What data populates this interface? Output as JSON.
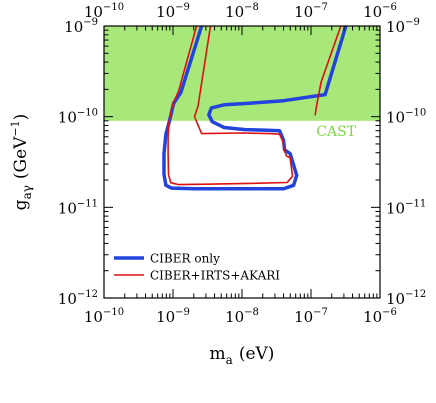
{
  "chart_data": {
    "type": "line",
    "x_scale": "log",
    "y_scale": "log",
    "xlim": [
      1e-10,
      1e-06
    ],
    "ylim": [
      1e-12,
      1e-09
    ],
    "x_ticks": [
      {
        "value": 1e-10,
        "base": "10",
        "exp": "−10"
      },
      {
        "value": 1e-09,
        "base": "10",
        "exp": "−9"
      },
      {
        "value": 1e-08,
        "base": "10",
        "exp": "−8"
      },
      {
        "value": 1e-07,
        "base": "10",
        "exp": "−7"
      },
      {
        "value": 1e-06,
        "base": "10",
        "exp": "−6"
      }
    ],
    "y_ticks": [
      {
        "value": 1e-12,
        "base": "10",
        "exp": "−12"
      },
      {
        "value": 1e-11,
        "base": "10",
        "exp": "−11"
      },
      {
        "value": 1e-10,
        "base": "10",
        "exp": "−10"
      },
      {
        "value": 1e-09,
        "base": "10",
        "exp": "−9"
      }
    ],
    "xlabel": {
      "main": "m",
      "sub": "a",
      "rest": "(eV)"
    },
    "ylabel": {
      "main": "g",
      "sub": "aγ",
      "rest": "(GeV",
      "sup": "−1",
      "close": ")"
    },
    "cast": {
      "label": "CAST",
      "lower_limit": 9e-11,
      "fill_color": "#a8e87a",
      "label_color": "#7fd645"
    },
    "series": [
      {
        "name": "CIBER only",
        "color": "#2244dd",
        "width": 3.5,
        "closed": false,
        "points": [
          [
            2.6e-09,
            1e-09
          ],
          [
            1.3e-09,
            1.85e-10
          ],
          [
            1.02e-09,
            1.4e-10
          ],
          [
            8.9e-10,
            9e-11
          ],
          [
            7.9e-10,
            6.4e-11
          ],
          [
            7.4e-10,
            3.9e-11
          ],
          [
            7.4e-10,
            2.3e-11
          ],
          [
            7.9e-10,
            1.75e-11
          ],
          [
            9.5e-10,
            1.63e-11
          ],
          [
            2e-09,
            1.6e-11
          ],
          [
            8e-09,
            1.6e-11
          ],
          [
            4e-08,
            1.6e-11
          ],
          [
            5.6e-08,
            1.75e-11
          ],
          [
            6.2e-08,
            2.25e-11
          ],
          [
            5e-08,
            3.9e-11
          ],
          [
            4.15e-08,
            4.3e-11
          ],
          [
            4e-08,
            5.5e-11
          ],
          [
            3.5e-08,
            7e-11
          ],
          [
            2.3e-08,
            7.1e-11
          ],
          [
            1.1e-08,
            7.2e-11
          ],
          [
            5.5e-09,
            7.6e-11
          ],
          [
            3.7e-09,
            8.8e-11
          ],
          [
            3.3e-09,
            1.05e-10
          ],
          [
            3.6e-09,
            1.25e-10
          ],
          [
            5.5e-09,
            1.35e-10
          ],
          [
            1.2e-08,
            1.4e-10
          ],
          [
            4e-08,
            1.5e-10
          ],
          [
            1.6e-07,
            1.75e-10
          ],
          [
            3.2e-07,
            1e-09
          ]
        ]
      },
      {
        "name": "CIBER+IRTS+AKARI",
        "color": "#dd1111",
        "width": 1.6,
        "closed": false,
        "points": [
          [
            2.2e-09,
            1e-09
          ],
          [
            1.2e-09,
            1.9e-10
          ],
          [
            9.8e-10,
            1.35e-10
          ],
          [
            8.8e-10,
            9e-11
          ],
          [
            8.5e-10,
            6e-11
          ],
          [
            8.5e-10,
            3.9e-11
          ],
          [
            8.6e-10,
            2.3e-11
          ],
          [
            9.3e-10,
            1.87e-11
          ],
          [
            1.2e-09,
            1.78e-11
          ],
          [
            3e-09,
            1.8e-11
          ],
          [
            1.5e-08,
            1.84e-11
          ],
          [
            4.5e-08,
            1.88e-11
          ],
          [
            5.4e-08,
            2.2e-11
          ],
          [
            5e-08,
            3.5e-11
          ],
          [
            4.4e-08,
            3.7e-11
          ],
          [
            4.05e-08,
            4.4e-11
          ],
          [
            3.9e-08,
            5.35e-11
          ],
          [
            3.5e-08,
            6.4e-11
          ],
          [
            2.5e-08,
            6.5e-11
          ],
          [
            1e-08,
            6.6e-11
          ],
          [
            2.6e-09,
            6.5e-11
          ],
          [
            2.05e-09,
            1e-10
          ],
          [
            2.3e-09,
            1.3e-10
          ],
          [
            3.5e-09,
            1e-09
          ]
        ]
      },
      {
        "name": "",
        "color": "#dd1111",
        "width": 1.6,
        "closed": false,
        "points": [
          [
            1.15e-07,
            1.05e-10
          ],
          [
            1.2e-07,
            1.3e-10
          ],
          [
            1.4e-07,
            2.4e-10
          ],
          [
            2.7e-07,
            1e-09
          ]
        ]
      }
    ],
    "legend": {
      "placement": "bottom-left",
      "entries": [
        {
          "label": "CIBER only",
          "color": "#2244dd",
          "width": 3.5
        },
        {
          "label": "CIBER+IRTS+AKARI",
          "color": "#dd1111",
          "width": 1.6
        }
      ]
    },
    "grid": false
  }
}
